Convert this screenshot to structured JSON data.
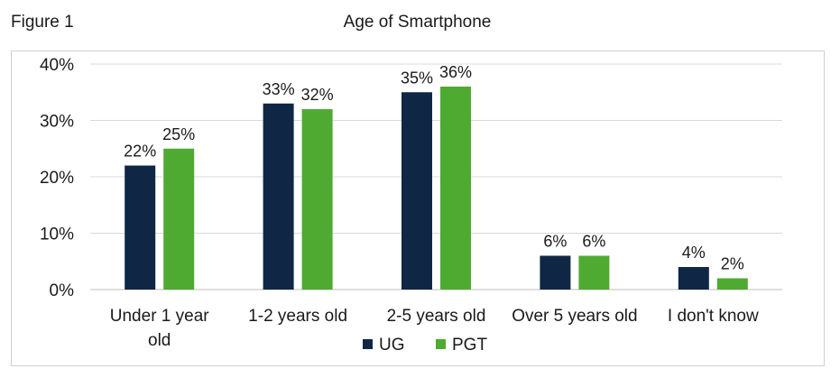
{
  "figure_label": "Figure 1",
  "chart_data": {
    "type": "bar",
    "title": "Age of Smartphone",
    "categories": [
      "Under 1 year old",
      "1-2 years old",
      "2-5 years old",
      "Over 5 years old",
      "I don't know"
    ],
    "category_lines": [
      [
        "Under 1 year",
        "old"
      ],
      [
        "1-2 years old"
      ],
      [
        "2-5 years old"
      ],
      [
        "Over 5 years old"
      ],
      [
        "I don't know"
      ]
    ],
    "series": [
      {
        "name": "UG",
        "values": [
          22,
          33,
          35,
          6,
          4
        ],
        "labels": [
          "22%",
          "33%",
          "35%",
          "6%",
          "4%"
        ],
        "color": "#0f2744"
      },
      {
        "name": "PGT",
        "values": [
          25,
          32,
          36,
          6,
          2
        ],
        "labels": [
          "25%",
          "32%",
          "36%",
          "6%",
          "2%"
        ],
        "color": "#4faa32"
      }
    ],
    "ylim": [
      0,
      40
    ],
    "yticks": [
      0,
      10,
      20,
      30,
      40
    ],
    "ytick_labels": [
      "0%",
      "10%",
      "20%",
      "30%",
      "40%"
    ],
    "grid": true,
    "legend_position": "bottom",
    "xlabel": "",
    "ylabel": ""
  }
}
